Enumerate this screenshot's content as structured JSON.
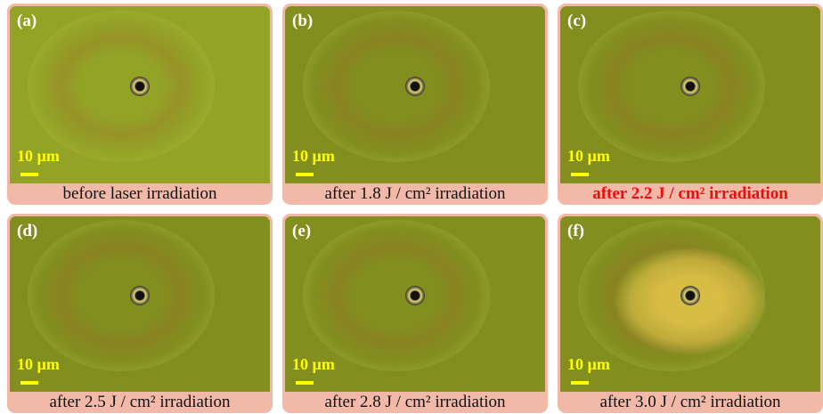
{
  "panels": [
    {
      "label": "(a)",
      "scale_bar": "10 µm",
      "caption": "before laser irradiation",
      "caption_color": "#111111",
      "caption_bold": false
    },
    {
      "label": "(b)",
      "scale_bar": "10 µm",
      "caption": "after 1.8 J / cm² irradiation",
      "caption_color": "#111111",
      "caption_bold": false
    },
    {
      "label": "(c)",
      "scale_bar": "10 µm",
      "caption": "after 2.2 J / cm² irradiation",
      "caption_color": "#e8100f",
      "caption_bold": true
    },
    {
      "label": "(d)",
      "scale_bar": "10 µm",
      "caption": "after 2.5 J / cm² irradiation",
      "caption_color": "#111111",
      "caption_bold": false
    },
    {
      "label": "(e)",
      "scale_bar": "10 µm",
      "caption": "after 2.8 J / cm² irradiation",
      "caption_color": "#111111",
      "caption_bold": false
    },
    {
      "label": "(f)",
      "scale_bar": "10 µm",
      "caption": "after 3.0 J / cm² irradiation",
      "caption_color": "#111111",
      "caption_bold": false
    }
  ]
}
